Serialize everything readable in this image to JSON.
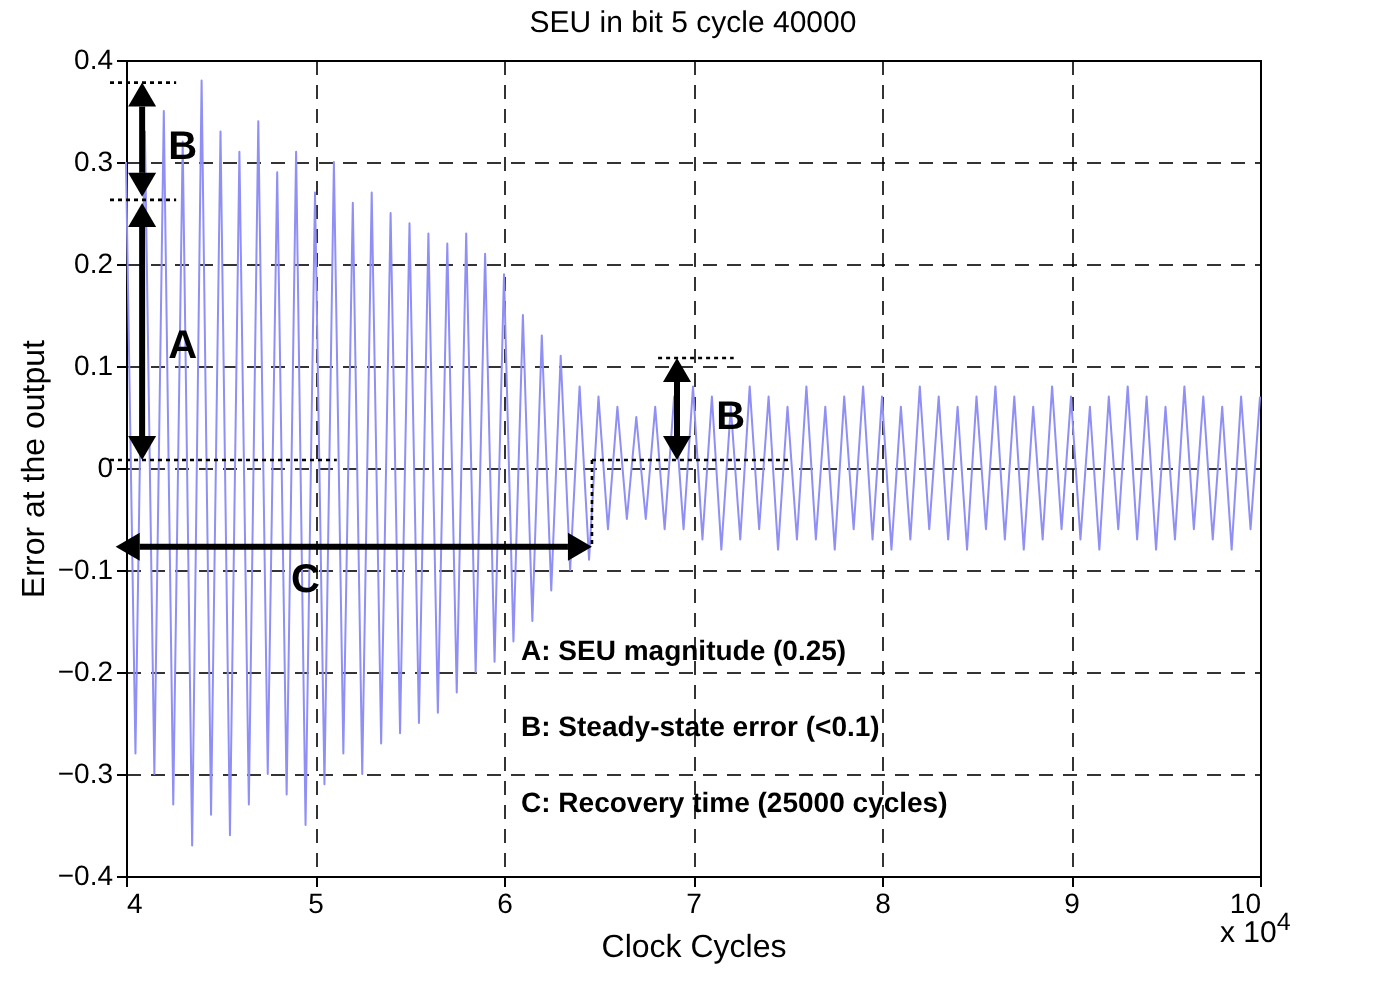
{
  "chart_data": {
    "type": "line",
    "title": "SEU in bit 5 cycle 40000",
    "xlabel": "Clock Cycles",
    "ylabel": "Error at the output",
    "x": [
      4.0,
      4.05,
      4.1,
      4.15,
      4.2,
      4.25,
      4.3,
      4.35,
      4.4,
      4.45,
      4.5,
      4.55,
      4.6,
      4.65,
      4.7,
      4.75,
      4.8,
      4.85,
      4.9,
      4.95,
      5.0,
      5.05,
      5.1,
      5.15,
      5.2,
      5.25,
      5.3,
      5.35,
      5.4,
      5.45,
      5.5,
      5.55,
      5.6,
      5.65,
      5.7,
      5.75,
      5.8,
      5.85,
      5.9,
      5.95,
      6.0,
      6.05,
      6.1,
      6.15,
      6.2,
      6.25,
      6.3,
      6.35,
      6.4,
      6.45,
      6.5,
      6.55,
      6.6,
      6.65,
      6.7,
      6.75,
      6.8,
      6.85,
      6.9,
      6.95,
      7.0,
      7.05,
      7.1,
      7.15,
      7.2,
      7.25,
      7.3,
      7.35,
      7.4,
      7.45,
      7.5,
      7.55,
      7.6,
      7.65,
      7.7,
      7.75,
      7.8,
      7.85,
      7.9,
      7.95,
      8.0,
      8.05,
      8.1,
      8.15,
      8.2,
      8.25,
      8.3,
      8.35,
      8.4,
      8.45,
      8.5,
      8.55,
      8.6,
      8.65,
      8.7,
      8.75,
      8.8,
      8.85,
      8.9,
      8.95,
      9.0,
      9.05,
      9.1,
      9.15,
      9.2,
      9.25,
      9.3,
      9.35,
      9.4,
      9.45,
      9.5,
      9.55,
      9.6,
      9.65,
      9.7,
      9.75,
      9.8,
      9.85,
      9.9,
      9.95,
      10.0
    ],
    "series": [
      {
        "color": "#8f8ff5",
        "values": [
          0.3,
          -0.28,
          0.33,
          -0.3,
          0.35,
          -0.33,
          0.32,
          -0.37,
          0.38,
          -0.34,
          0.33,
          -0.36,
          0.31,
          -0.33,
          0.34,
          -0.3,
          0.29,
          -0.32,
          0.31,
          -0.35,
          0.27,
          -0.31,
          0.3,
          -0.28,
          0.26,
          -0.3,
          0.27,
          -0.27,
          0.25,
          -0.26,
          0.24,
          -0.25,
          0.23,
          -0.24,
          0.22,
          -0.22,
          0.23,
          -0.2,
          0.21,
          -0.19,
          0.19,
          -0.17,
          0.15,
          -0.15,
          0.13,
          -0.12,
          0.11,
          -0.1,
          0.08,
          -0.09,
          0.07,
          -0.06,
          0.06,
          -0.05,
          0.05,
          -0.05,
          0.06,
          -0.06,
          0.07,
          -0.06,
          0.08,
          -0.07,
          0.07,
          -0.08,
          0.06,
          -0.07,
          0.08,
          -0.06,
          0.07,
          -0.08,
          0.06,
          -0.07,
          0.08,
          -0.07,
          0.06,
          -0.08,
          0.07,
          -0.06,
          0.08,
          -0.07,
          0.07,
          -0.08,
          0.06,
          -0.07,
          0.08,
          -0.06,
          0.07,
          -0.07,
          0.06,
          -0.08,
          0.07,
          -0.06,
          0.08,
          -0.07,
          0.07,
          -0.08,
          0.06,
          -0.07,
          0.08,
          -0.06,
          0.07,
          -0.07,
          0.06,
          -0.08,
          0.07,
          -0.06,
          0.08,
          -0.07,
          0.07,
          -0.08,
          0.06,
          -0.07,
          0.08,
          -0.06,
          0.07,
          -0.07,
          0.06,
          -0.08,
          0.07,
          -0.06,
          0.07
        ]
      }
    ],
    "xlim": [
      4,
      10
    ],
    "xticks": [
      4,
      5,
      6,
      7,
      8,
      9,
      10
    ],
    "ylim": [
      -0.4,
      0.4
    ],
    "yticks": [
      -0.4,
      -0.3,
      -0.2,
      -0.1,
      0,
      0.1,
      0.2,
      0.3,
      0.4
    ],
    "grid": true,
    "line_style": "solid",
    "annotations": [
      {
        "text": "B",
        "x": 4.3,
        "y": 0.315
      },
      {
        "text": "A",
        "x": 4.3,
        "y": 0.12
      },
      {
        "text": "C",
        "x": 4.95,
        "y": -0.11
      },
      {
        "text": "B",
        "x": 7.2,
        "y": 0.05
      },
      "A: SEU magnitude (0.25)",
      "B: Steady-state error (<0.1)",
      "C: Recovery time (25000 cycles)",
      "x 10$^{4}$"
    ]
  }
}
